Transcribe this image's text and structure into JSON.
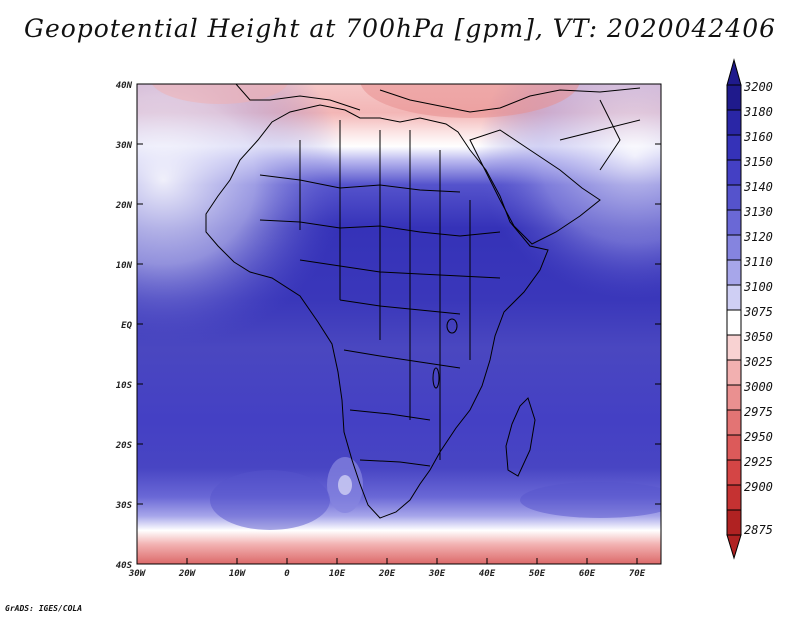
{
  "title": "Geopotential Height at 700hPa [gpm], VT: 2020042406",
  "credit": "GrADS: IGES/COLA",
  "lat_labels": [
    "40N",
    "30N",
    "20N",
    "10N",
    "EQ",
    "10S",
    "20S",
    "30S",
    "40S"
  ],
  "lon_labels": [
    "30W",
    "20W",
    "10W",
    "0",
    "10E",
    "20E",
    "30E",
    "40E",
    "50E",
    "60E",
    "70E"
  ],
  "colorbar": {
    "levels": [
      "3200",
      "3180",
      "3160",
      "3150",
      "3140",
      "3130",
      "3120",
      "3110",
      "3100",
      "3075",
      "3050",
      "3025",
      "3000",
      "2975",
      "2950",
      "2925",
      "2900",
      "2875"
    ],
    "colors": [
      "#1f1a8c",
      "#2a26a6",
      "#3532b8",
      "#4440c4",
      "#5553cc",
      "#6a68d6",
      "#8584df",
      "#a7a6ea",
      "#cfcff4",
      "#ffffff",
      "#f8d2d2",
      "#f2b0b0",
      "#ea9090",
      "#e37474",
      "#dc5a5a",
      "#d44545",
      "#c53232",
      "#b02222"
    ]
  }
}
